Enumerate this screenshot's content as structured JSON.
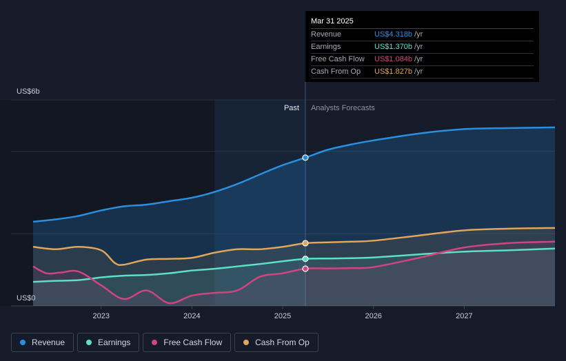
{
  "colors": {
    "revenue": "#2b8fe0",
    "earnings": "#5de0c6",
    "fcf": "#d0457f",
    "cfo": "#e2a55a",
    "grid": "#2a3140",
    "axis_text": "#c9ced8"
  },
  "tooltip": {
    "date": "Mar 31 2025",
    "rows": [
      {
        "label": "Revenue",
        "value": "US$4.318b",
        "unit": "/yr",
        "color": "#2b8fe0"
      },
      {
        "label": "Earnings",
        "value": "US$1.370b",
        "unit": "/yr",
        "color": "#5de0c6"
      },
      {
        "label": "Free Cash Flow",
        "value": "US$1.084b",
        "unit": "/yr",
        "color": "#d0457f"
      },
      {
        "label": "Cash From Op",
        "value": "US$1.827b",
        "unit": "/yr",
        "color": "#e2a55a"
      }
    ]
  },
  "legend": [
    {
      "label": "Revenue",
      "color": "#2b8fe0"
    },
    {
      "label": "Earnings",
      "color": "#5de0c6"
    },
    {
      "label": "Free Cash Flow",
      "color": "#d0457f"
    },
    {
      "label": "Cash From Op",
      "color": "#e2a55a"
    }
  ],
  "chart_data": {
    "type": "line",
    "title": "",
    "xlabel": "",
    "ylabel": "",
    "ylim": [
      0,
      6
    ],
    "xlim": [
      2022.25,
      2028.0
    ],
    "y_tick_labels": [
      {
        "value": 6,
        "label": "US$6b"
      },
      {
        "value": 0,
        "label": "US$0"
      }
    ],
    "x_ticks": [
      2023,
      2024,
      2025,
      2026,
      2027
    ],
    "past_label": "Past",
    "forecast_label": "Analysts Forecasts",
    "divider_x": 2025.25,
    "highlight_start_x": 2024.25,
    "series": [
      {
        "name": "Revenue",
        "key": "revenue",
        "x": [
          2022.25,
          2022.5,
          2022.75,
          2023.0,
          2023.25,
          2023.5,
          2023.75,
          2024.0,
          2024.25,
          2024.5,
          2024.75,
          2025.0,
          2025.25,
          2025.5,
          2025.75,
          2026.0,
          2026.5,
          2027.0,
          2027.5,
          2028.0
        ],
        "values": [
          2.45,
          2.52,
          2.62,
          2.78,
          2.9,
          2.95,
          3.05,
          3.15,
          3.32,
          3.55,
          3.83,
          4.1,
          4.318,
          4.55,
          4.7,
          4.82,
          5.02,
          5.15,
          5.18,
          5.2
        ]
      },
      {
        "name": "Earnings",
        "key": "earnings",
        "x": [
          2022.25,
          2022.5,
          2022.75,
          2023.0,
          2023.25,
          2023.5,
          2023.75,
          2024.0,
          2024.25,
          2024.5,
          2024.75,
          2025.0,
          2025.25,
          2025.5,
          2025.75,
          2026.0,
          2026.5,
          2027.0,
          2027.5,
          2028.0
        ],
        "values": [
          0.7,
          0.73,
          0.75,
          0.83,
          0.88,
          0.9,
          0.95,
          1.03,
          1.08,
          1.15,
          1.22,
          1.3,
          1.37,
          1.38,
          1.39,
          1.41,
          1.5,
          1.58,
          1.62,
          1.67
        ]
      },
      {
        "name": "Free Cash Flow",
        "key": "fcf",
        "x": [
          2022.25,
          2022.4,
          2022.55,
          2022.75,
          2023.0,
          2023.25,
          2023.5,
          2023.75,
          2024.0,
          2024.25,
          2024.5,
          2024.75,
          2025.0,
          2025.25,
          2025.5,
          2025.75,
          2026.0,
          2026.5,
          2027.0,
          2027.5,
          2028.0
        ],
        "values": [
          1.15,
          0.95,
          0.97,
          1.0,
          0.6,
          0.2,
          0.45,
          0.08,
          0.3,
          0.38,
          0.45,
          0.85,
          0.95,
          1.084,
          1.09,
          1.1,
          1.13,
          1.4,
          1.7,
          1.83,
          1.87
        ]
      },
      {
        "name": "Cash From Op",
        "key": "cfo",
        "x": [
          2022.25,
          2022.5,
          2022.75,
          2023.0,
          2023.15,
          2023.25,
          2023.5,
          2023.75,
          2024.0,
          2024.25,
          2024.5,
          2024.75,
          2025.0,
          2025.25,
          2025.5,
          2025.75,
          2026.0,
          2026.5,
          2027.0,
          2027.5,
          2028.0
        ],
        "values": [
          1.72,
          1.65,
          1.72,
          1.62,
          1.25,
          1.2,
          1.35,
          1.37,
          1.4,
          1.55,
          1.65,
          1.65,
          1.72,
          1.827,
          1.85,
          1.87,
          1.9,
          2.05,
          2.2,
          2.25,
          2.27
        ]
      }
    ]
  }
}
